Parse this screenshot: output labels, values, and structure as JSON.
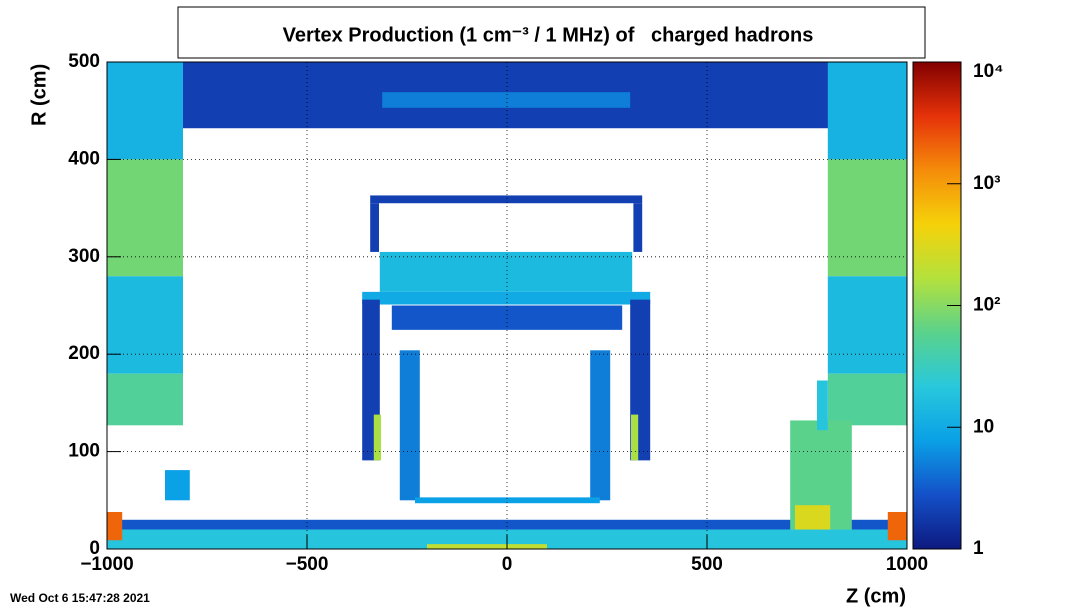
{
  "chart_data": {
    "type": "heatmap",
    "title": "Vertex Production (1 cm⁻³ / 1 MHz) of   charged hadrons",
    "x_label": "Z (cm)",
    "y_label": "R (cm)",
    "timestamp": "Wed Oct  6 15:47:28 2021",
    "xlim": [
      -1000,
      1000
    ],
    "ylim": [
      0,
      500
    ],
    "xticks": [
      {
        "value": -1000,
        "label": "−1000"
      },
      {
        "value": -500,
        "label": "−500"
      },
      0,
      500,
      1000
    ],
    "yticks": [
      0,
      100,
      200,
      300,
      400,
      500
    ],
    "zlim": [
      1,
      10000
    ],
    "zlog": true,
    "zticks": [
      1,
      10,
      {
        "value": 100,
        "label": "10²"
      },
      {
        "value": 1000,
        "label": "10³"
      },
      {
        "value": 10000,
        "label": "10⁴"
      }
    ],
    "colors": [
      "#0d1a80",
      "#1450c8",
      "#0aa0e6",
      "#28c8dc",
      "#5ad28c",
      "#b4e13c",
      "#f5d20a",
      "#f58c0a",
      "#e6320a",
      "#820000"
    ],
    "grid": true,
    "regions": [
      {
        "x": [
          -1000,
          1000
        ],
        "y": [
          432,
          500
        ],
        "value": 2
      },
      {
        "x": [
          -312,
          308
        ],
        "y": [
          453,
          469
        ],
        "value": 5
      },
      {
        "x": [
          -1000,
          -810
        ],
        "y": [
          400,
          500
        ],
        "value": 12
      },
      {
        "x": [
          -1000,
          -810
        ],
        "y": [
          280,
          400
        ],
        "value": 80
      },
      {
        "x": [
          -1000,
          -810
        ],
        "y": [
          180,
          280
        ],
        "value": 15
      },
      {
        "x": [
          -1000,
          -810
        ],
        "y": [
          127,
          180
        ],
        "value": 50
      },
      {
        "x": [
          802,
          1000
        ],
        "y": [
          400,
          500
        ],
        "value": 12
      },
      {
        "x": [
          802,
          1000
        ],
        "y": [
          280,
          400
        ],
        "value": 80
      },
      {
        "x": [
          802,
          1000
        ],
        "y": [
          180,
          280
        ],
        "value": 15
      },
      {
        "x": [
          802,
          1000
        ],
        "y": [
          127,
          180
        ],
        "value": 50
      },
      {
        "x": [
          -342,
          338
        ],
        "y": [
          355,
          363
        ],
        "value": 2
      },
      {
        "x": [
          -342,
          -320
        ],
        "y": [
          305,
          355
        ],
        "value": 2
      },
      {
        "x": [
          316,
          338
        ],
        "y": [
          305,
          355
        ],
        "value": 2
      },
      {
        "x": [
          -318,
          313
        ],
        "y": [
          264,
          305
        ],
        "value": 15
      },
      {
        "x": [
          -362,
          358
        ],
        "y": [
          251,
          264
        ],
        "value": 10
      },
      {
        "x": [
          -288,
          288
        ],
        "y": [
          225,
          250
        ],
        "value": 3
      },
      {
        "x": [
          -362,
          -318
        ],
        "y": [
          91,
          256
        ],
        "value": 2
      },
      {
        "x": [
          308,
          358
        ],
        "y": [
          91,
          256
        ],
        "value": 2
      },
      {
        "x": [
          -333,
          -315
        ],
        "y": [
          91,
          138
        ],
        "value": 150
      },
      {
        "x": [
          310,
          328
        ],
        "y": [
          91,
          138
        ],
        "value": 150
      },
      {
        "x": [
          -268,
          -218
        ],
        "y": [
          50,
          204
        ],
        "value": 5
      },
      {
        "x": [
          208,
          258
        ],
        "y": [
          50,
          204
        ],
        "value": 5
      },
      {
        "x": [
          -230,
          232
        ],
        "y": [
          47,
          53
        ],
        "value": 8
      },
      {
        "x": [
          -1000,
          1000
        ],
        "y": [
          20,
          30
        ],
        "value": 3
      },
      {
        "x": [
          -1000,
          1000
        ],
        "y": [
          0,
          20
        ],
        "value": 20
      },
      {
        "x": [
          -200,
          100
        ],
        "y": [
          0,
          5
        ],
        "value": 200
      },
      {
        "x": [
          -1000,
          -962
        ],
        "y": [
          9,
          38
        ],
        "value": 2000
      },
      {
        "x": [
          952,
          1000
        ],
        "y": [
          9,
          38
        ],
        "value": 2000
      },
      {
        "x": [
          708,
          862
        ],
        "y": [
          20,
          132
        ],
        "value": 60
      },
      {
        "x": [
          720,
          808
        ],
        "y": [
          20,
          45
        ],
        "value": 300
      },
      {
        "x": [
          775,
          802
        ],
        "y": [
          122,
          173
        ],
        "value": 20
      },
      {
        "x": [
          -855,
          -793
        ],
        "y": [
          50,
          81
        ],
        "value": 8
      }
    ]
  }
}
